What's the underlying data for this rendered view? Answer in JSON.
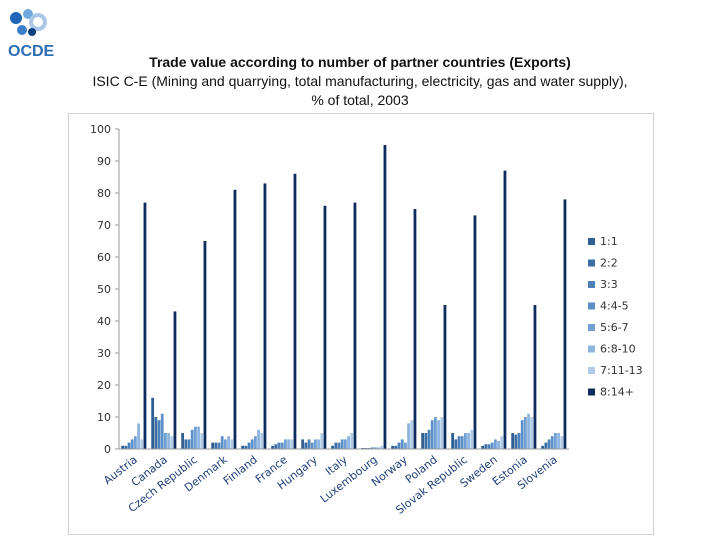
{
  "logo": {
    "text": "OCDE",
    "colors": [
      "#1f66b8",
      "#6fa8dc",
      "#aac7e8",
      "#3d7ec9",
      "#0a3f80"
    ]
  },
  "title": "Trade value according to number of partner countries (Exports)",
  "subtitle_line1": "ISIC C-E (Mining and quarrying, total manufacturing, electricity, gas and water supply),",
  "subtitle_line2": "% of total, 2003",
  "chart_data": {
    "type": "bar",
    "title": "",
    "xlabel": "",
    "ylabel": "",
    "ylim": [
      0,
      100
    ],
    "yticks": [
      0,
      10,
      20,
      30,
      40,
      50,
      60,
      70,
      80,
      90,
      100
    ],
    "grid": false,
    "legend_position": "right",
    "categories": [
      "Austria",
      "Canada",
      "Czech Republic",
      "Denmark",
      "Finland",
      "France",
      "Hungary",
      "Italy",
      "Luxembourg",
      "Norway",
      "Poland",
      "Slovak Republic",
      "Sweden",
      "Estonia",
      "Slovenia"
    ],
    "series": [
      {
        "name": "1:1",
        "color": "#2f5f93",
        "values": [
          1,
          16,
          5,
          2,
          1,
          1,
          3,
          1,
          0.3,
          1,
          5,
          5,
          1,
          5,
          1
        ]
      },
      {
        "name": "2:2",
        "color": "#3b6ea5",
        "values": [
          1,
          10,
          3,
          2,
          1,
          1.5,
          2,
          2,
          0.3,
          1,
          5,
          3,
          1.5,
          4.5,
          2
        ]
      },
      {
        "name": "3:3",
        "color": "#4d82b8",
        "values": [
          2,
          9,
          3,
          2,
          2,
          2,
          3,
          2,
          0.3,
          2,
          6,
          4,
          1.5,
          5,
          3
        ]
      },
      {
        "name": "4:4-5",
        "color": "#5b8fc7",
        "values": [
          3,
          11,
          6,
          4,
          3,
          2,
          2,
          3,
          0.5,
          3,
          9,
          4,
          2,
          9,
          4
        ]
      },
      {
        "name": "5:6-7",
        "color": "#6f9fd3",
        "values": [
          4,
          5,
          7,
          3,
          4,
          3,
          3,
          3,
          0.5,
          2,
          10,
          5,
          3,
          10,
          5
        ]
      },
      {
        "name": "6:8-10",
        "color": "#8cb4de",
        "values": [
          8,
          5,
          7,
          4,
          6,
          3,
          3,
          4,
          0.5,
          8,
          9,
          5,
          2.5,
          11,
          5
        ]
      },
      {
        "name": "7:11-13",
        "color": "#b0cbe8",
        "values": [
          3,
          4,
          5,
          3,
          5,
          3,
          5,
          5,
          1,
          9,
          10,
          6,
          4,
          10,
          4
        ]
      },
      {
        "name": "8:14+",
        "color": "#0d2c5e",
        "values": [
          77,
          43,
          65,
          81,
          83,
          86,
          76,
          77,
          95,
          75,
          45,
          73,
          87,
          45,
          78
        ]
      }
    ]
  }
}
